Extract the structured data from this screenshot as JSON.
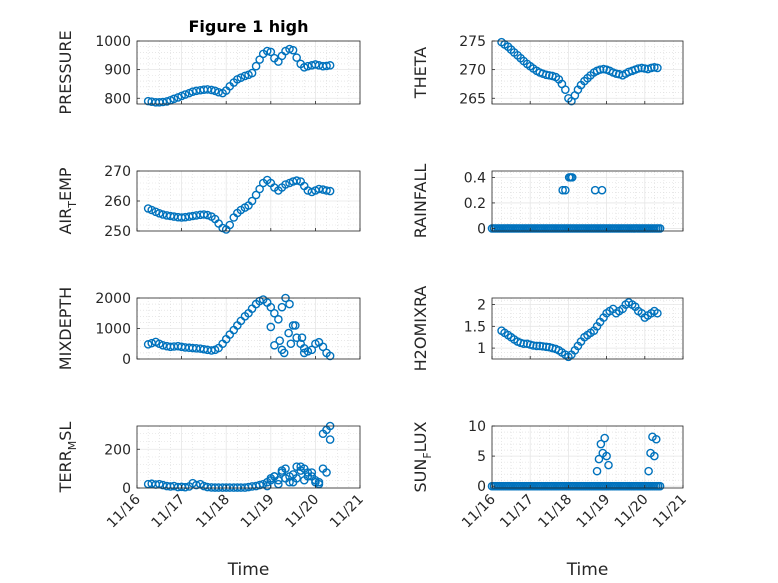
{
  "figure": {
    "title": "Figure 1 high",
    "xlabel": "Time",
    "marker_color": "#0072BD",
    "x_tick_labels": [
      "11/16",
      "11/17",
      "11/18",
      "11/19",
      "11/20",
      "11/21"
    ]
  },
  "chart_data": [
    {
      "type": "scatter",
      "ylabel": "PRESSURE",
      "xlim": [
        16,
        21
      ],
      "ylim": [
        780,
        1000
      ],
      "yticks": [
        800,
        900,
        1000
      ],
      "x": [
        16.25,
        16.33,
        16.42,
        16.5,
        16.58,
        16.67,
        16.75,
        16.83,
        16.92,
        17.0,
        17.08,
        17.17,
        17.25,
        17.33,
        17.42,
        17.5,
        17.58,
        17.67,
        17.75,
        17.83,
        17.92,
        18.0,
        18.08,
        18.17,
        18.25,
        18.33,
        18.42,
        18.5,
        18.58,
        18.67,
        18.75,
        18.83,
        18.92,
        19.0,
        19.08,
        19.17,
        19.25,
        19.33,
        19.42,
        19.5,
        19.58,
        19.67,
        19.75,
        19.83,
        19.92,
        20.0,
        20.08,
        20.17,
        20.25,
        20.33
      ],
      "y": [
        790,
        788,
        786,
        786,
        787,
        789,
        793,
        798,
        803,
        808,
        813,
        818,
        823,
        826,
        828,
        830,
        831,
        829,
        826,
        821,
        818,
        827,
        842,
        855,
        866,
        872,
        878,
        882,
        888,
        912,
        935,
        955,
        965,
        962,
        940,
        928,
        948,
        965,
        972,
        968,
        942,
        920,
        908,
        912,
        915,
        918,
        915,
        912,
        913,
        915
      ]
    },
    {
      "type": "scatter",
      "ylabel": "THETA",
      "xlim": [
        16,
        21
      ],
      "ylim": [
        264,
        275
      ],
      "yticks": [
        265,
        270,
        275
      ],
      "x": [
        16.25,
        16.33,
        16.42,
        16.5,
        16.58,
        16.67,
        16.75,
        16.83,
        16.92,
        17.0,
        17.08,
        17.17,
        17.25,
        17.33,
        17.42,
        17.5,
        17.58,
        17.67,
        17.75,
        17.83,
        17.92,
        18.0,
        18.08,
        18.17,
        18.25,
        18.33,
        18.42,
        18.5,
        18.58,
        18.67,
        18.75,
        18.83,
        18.92,
        19.0,
        19.08,
        19.17,
        19.25,
        19.33,
        19.42,
        19.5,
        19.58,
        19.67,
        19.75,
        19.83,
        19.92,
        20.0,
        20.08,
        20.17,
        20.25,
        20.33
      ],
      "y": [
        274.8,
        274.4,
        274.0,
        273.5,
        273.0,
        272.5,
        272.0,
        271.5,
        271.0,
        270.6,
        270.2,
        269.8,
        269.5,
        269.3,
        269.1,
        269.0,
        268.9,
        268.7,
        268.3,
        267.5,
        266.5,
        265.0,
        264.5,
        265.5,
        266.5,
        267.3,
        268.0,
        268.5,
        269.0,
        269.5,
        269.8,
        270.0,
        270.1,
        270.0,
        269.8,
        269.5,
        269.3,
        269.2,
        269.0,
        269.3,
        269.6,
        269.8,
        270.0,
        270.2,
        270.3,
        270.2,
        270.1,
        270.3,
        270.4,
        270.3
      ]
    },
    {
      "type": "scatter",
      "ylabel": "AIR_TEMP",
      "xlim": [
        16,
        21
      ],
      "ylim": [
        250,
        270
      ],
      "yticks": [
        250,
        260,
        270
      ],
      "x": [
        16.25,
        16.33,
        16.42,
        16.5,
        16.58,
        16.67,
        16.75,
        16.83,
        16.92,
        17.0,
        17.08,
        17.17,
        17.25,
        17.33,
        17.42,
        17.5,
        17.58,
        17.67,
        17.75,
        17.83,
        17.92,
        18.0,
        18.08,
        18.17,
        18.25,
        18.33,
        18.42,
        18.5,
        18.58,
        18.67,
        18.75,
        18.83,
        18.92,
        19.0,
        19.08,
        19.17,
        19.25,
        19.33,
        19.42,
        19.5,
        19.58,
        19.67,
        19.75,
        19.83,
        19.92,
        20.0,
        20.08,
        20.17,
        20.25,
        20.33
      ],
      "y": [
        257.5,
        257.0,
        256.4,
        255.9,
        255.5,
        255.2,
        255.0,
        254.8,
        254.6,
        254.5,
        254.6,
        254.8,
        255.0,
        255.2,
        255.4,
        255.5,
        255.3,
        254.8,
        254.0,
        252.5,
        251.0,
        250.5,
        252.0,
        254.5,
        256.0,
        257.0,
        257.8,
        258.5,
        260.0,
        262.0,
        264.0,
        266.0,
        267.0,
        266.0,
        264.5,
        263.5,
        264.5,
        265.5,
        266.0,
        266.5,
        266.8,
        266.5,
        265.0,
        263.5,
        263.0,
        263.5,
        264.0,
        263.8,
        263.5,
        263.3
      ]
    },
    {
      "type": "scatter",
      "ylabel": "RAINFALL",
      "xlim": [
        16,
        21
      ],
      "ylim": [
        -0.02,
        0.45
      ],
      "yticks": [
        0,
        0.2,
        0.4
      ],
      "x": [
        16.0,
        16.05,
        16.1,
        16.15,
        16.2,
        16.25,
        16.3,
        16.35,
        16.4,
        16.45,
        16.5,
        16.55,
        16.6,
        16.65,
        16.7,
        16.75,
        16.8,
        16.85,
        16.9,
        16.95,
        17.0,
        17.05,
        17.1,
        17.15,
        17.2,
        17.25,
        17.3,
        17.35,
        17.4,
        17.45,
        17.5,
        17.55,
        17.6,
        17.65,
        17.7,
        17.75,
        17.8,
        17.85,
        17.9,
        17.95,
        18.0,
        18.05,
        18.1,
        18.15,
        18.2,
        18.25,
        18.3,
        18.35,
        18.4,
        18.45,
        18.5,
        18.55,
        18.6,
        18.65,
        18.7,
        18.75,
        18.8,
        18.85,
        18.9,
        18.95,
        19.0,
        19.05,
        19.1,
        19.15,
        19.2,
        19.25,
        19.3,
        19.35,
        19.4,
        19.45,
        19.5,
        19.55,
        19.6,
        19.65,
        19.7,
        19.75,
        19.8,
        19.85,
        19.9,
        19.95,
        20.0,
        20.05,
        20.1,
        20.15,
        20.2,
        20.25,
        20.3,
        20.35,
        20.4,
        17.85,
        17.92,
        18.02,
        18.06,
        18.1,
        18.7,
        18.88
      ],
      "y": [
        0,
        0,
        0,
        0,
        0,
        0,
        0,
        0,
        0,
        0,
        0,
        0,
        0,
        0,
        0,
        0,
        0,
        0,
        0,
        0,
        0,
        0,
        0,
        0,
        0,
        0,
        0,
        0,
        0,
        0,
        0,
        0,
        0,
        0,
        0,
        0,
        0,
        0,
        0,
        0,
        0,
        0,
        0,
        0,
        0,
        0,
        0,
        0,
        0,
        0,
        0,
        0,
        0,
        0,
        0,
        0,
        0,
        0,
        0,
        0,
        0,
        0,
        0,
        0,
        0,
        0,
        0,
        0,
        0,
        0,
        0,
        0,
        0,
        0,
        0,
        0,
        0,
        0,
        0,
        0,
        0,
        0,
        0,
        0,
        0,
        0,
        0,
        0,
        0,
        0.3,
        0.3,
        0.4,
        0.4,
        0.4,
        0.3,
        0.3
      ]
    },
    {
      "type": "scatter",
      "ylabel": "MIXDEPTH",
      "xlim": [
        16,
        21
      ],
      "ylim": [
        0,
        2000
      ],
      "yticks": [
        0,
        1000,
        2000
      ],
      "x": [
        16.25,
        16.33,
        16.42,
        16.5,
        16.58,
        16.67,
        16.75,
        16.83,
        16.92,
        17.0,
        17.08,
        17.17,
        17.25,
        17.33,
        17.42,
        17.5,
        17.58,
        17.67,
        17.75,
        17.83,
        17.92,
        18.0,
        18.08,
        18.17,
        18.25,
        18.33,
        18.42,
        18.5,
        18.58,
        18.67,
        18.75,
        18.83,
        18.92,
        19.0,
        19.08,
        19.17,
        19.25,
        19.33,
        19.42,
        19.5,
        19.58,
        19.67,
        19.75,
        19.83,
        19.92,
        20.0,
        20.08,
        20.17,
        20.25,
        20.33,
        19.0,
        19.08,
        19.2,
        19.25,
        19.3,
        19.4,
        19.45,
        19.55,
        19.7,
        19.75
      ],
      "y": [
        480,
        520,
        560,
        500,
        450,
        420,
        400,
        410,
        420,
        400,
        380,
        370,
        360,
        350,
        340,
        320,
        300,
        280,
        300,
        360,
        500,
        650,
        800,
        950,
        1100,
        1250,
        1400,
        1500,
        1650,
        1800,
        1900,
        1950,
        1850,
        1700,
        1500,
        1300,
        1700,
        2000,
        1800,
        1100,
        700,
        500,
        350,
        250,
        300,
        500,
        550,
        400,
        200,
        100,
        1050,
        450,
        600,
        300,
        200,
        850,
        500,
        1100,
        700,
        200
      ]
    },
    {
      "type": "scatter",
      "ylabel": "H2OMIXRA",
      "xlim": [
        16,
        21
      ],
      "ylim": [
        0.75,
        2.15
      ],
      "yticks": [
        1,
        1.5,
        2
      ],
      "x": [
        16.25,
        16.33,
        16.42,
        16.5,
        16.58,
        16.67,
        16.75,
        16.83,
        16.92,
        17.0,
        17.08,
        17.17,
        17.25,
        17.33,
        17.42,
        17.5,
        17.58,
        17.67,
        17.75,
        17.83,
        17.92,
        18.0,
        18.08,
        18.17,
        18.25,
        18.33,
        18.42,
        18.5,
        18.58,
        18.67,
        18.75,
        18.83,
        18.92,
        19.0,
        19.08,
        19.17,
        19.25,
        19.33,
        19.42,
        19.5,
        19.58,
        19.67,
        19.75,
        19.83,
        19.92,
        20.0,
        20.08,
        20.17,
        20.25,
        20.33
      ],
      "y": [
        1.4,
        1.35,
        1.3,
        1.25,
        1.2,
        1.15,
        1.12,
        1.1,
        1.1,
        1.08,
        1.06,
        1.05,
        1.05,
        1.04,
        1.03,
        1.02,
        1.0,
        0.98,
        0.95,
        0.9,
        0.85,
        0.8,
        0.85,
        0.95,
        1.05,
        1.15,
        1.25,
        1.3,
        1.35,
        1.4,
        1.5,
        1.6,
        1.7,
        1.8,
        1.85,
        1.9,
        1.8,
        1.85,
        1.9,
        2.0,
        2.05,
        2.0,
        1.95,
        1.85,
        1.8,
        1.7,
        1.75,
        1.8,
        1.85,
        1.8
      ]
    },
    {
      "type": "scatter",
      "ylabel": "TERR_MSL",
      "xlim": [
        16,
        21
      ],
      "ylim": [
        0,
        320
      ],
      "yticks": [
        0,
        200
      ],
      "x": [
        16.25,
        16.33,
        16.42,
        16.5,
        16.58,
        16.67,
        16.75,
        16.83,
        16.92,
        17.0,
        17.08,
        17.17,
        17.25,
        17.33,
        17.42,
        17.5,
        17.58,
        17.67,
        17.75,
        17.83,
        17.92,
        18.0,
        18.08,
        18.17,
        18.25,
        18.33,
        18.42,
        18.5,
        18.58,
        18.67,
        18.75,
        18.83,
        18.92,
        19.0,
        19.08,
        19.17,
        19.25,
        19.33,
        19.42,
        19.5,
        19.58,
        19.67,
        19.75,
        19.83,
        19.92,
        20.0,
        20.08,
        20.17,
        20.25,
        20.33,
        18.92,
        19.0,
        19.08,
        19.17,
        19.25,
        19.33,
        19.42,
        19.5,
        19.58,
        19.67,
        19.75,
        19.83,
        19.92,
        20.0,
        20.08,
        20.17,
        20.25,
        20.33
      ],
      "y": [
        20,
        22,
        18,
        20,
        15,
        10,
        8,
        10,
        5,
        6,
        4,
        8,
        25,
        15,
        20,
        10,
        5,
        3,
        2,
        2,
        2,
        2,
        2,
        2,
        2,
        2,
        2,
        5,
        8,
        10,
        15,
        20,
        30,
        50,
        60,
        40,
        80,
        100,
        60,
        30,
        50,
        110,
        100,
        80,
        60,
        40,
        30,
        100,
        80,
        250,
        10,
        40,
        60,
        20,
        90,
        50,
        30,
        70,
        110,
        90,
        40,
        60,
        80,
        30,
        20,
        280,
        300,
        320
      ]
    },
    {
      "type": "scatter",
      "ylabel": "SUN_FLUX",
      "xlim": [
        16,
        21
      ],
      "ylim": [
        -0.3,
        10
      ],
      "yticks": [
        0,
        5,
        10
      ],
      "x": [
        16.0,
        16.05,
        16.1,
        16.15,
        16.2,
        16.25,
        16.3,
        16.35,
        16.4,
        16.45,
        16.5,
        16.55,
        16.6,
        16.65,
        16.7,
        16.75,
        16.8,
        16.85,
        16.9,
        16.95,
        17.0,
        17.05,
        17.1,
        17.15,
        17.2,
        17.25,
        17.3,
        17.35,
        17.4,
        17.45,
        17.5,
        17.55,
        17.6,
        17.65,
        17.7,
        17.75,
        17.8,
        17.85,
        17.9,
        17.95,
        18.0,
        18.05,
        18.1,
        18.15,
        18.2,
        18.25,
        18.3,
        18.35,
        18.4,
        18.45,
        18.5,
        18.55,
        18.6,
        18.65,
        18.7,
        18.75,
        18.8,
        18.85,
        18.9,
        18.95,
        19.0,
        19.05,
        19.1,
        19.15,
        19.2,
        19.25,
        19.3,
        19.35,
        19.4,
        19.45,
        19.5,
        19.55,
        19.6,
        19.65,
        19.7,
        19.75,
        19.8,
        19.85,
        19.9,
        19.95,
        20.0,
        20.05,
        20.1,
        20.15,
        20.2,
        20.25,
        20.3,
        20.35,
        20.4,
        18.75,
        18.8,
        18.85,
        18.9,
        18.95,
        19.0,
        19.05,
        20.1,
        20.15,
        20.2,
        20.25,
        20.3
      ],
      "y": [
        0,
        0,
        0,
        0,
        0,
        0,
        0,
        0,
        0,
        0,
        0,
        0,
        0,
        0,
        0,
        0,
        0,
        0,
        0,
        0,
        0,
        0,
        0,
        0,
        0,
        0,
        0,
        0,
        0,
        0,
        0,
        0,
        0,
        0,
        0,
        0,
        0,
        0,
        0,
        0,
        0,
        0,
        0,
        0,
        0,
        0,
        0,
        0,
        0,
        0,
        0,
        0,
        0,
        0,
        0,
        0,
        0,
        0,
        0,
        0,
        0,
        0,
        0,
        0,
        0,
        0,
        0,
        0,
        0,
        0,
        0,
        0,
        0,
        0,
        0,
        0,
        0,
        0,
        0,
        0,
        0,
        0,
        0,
        0,
        0,
        0,
        0,
        0,
        0,
        2.5,
        4.5,
        7,
        5.5,
        8,
        5,
        3.5,
        2.5,
        5.5,
        8.2,
        5,
        7.8
      ]
    }
  ]
}
